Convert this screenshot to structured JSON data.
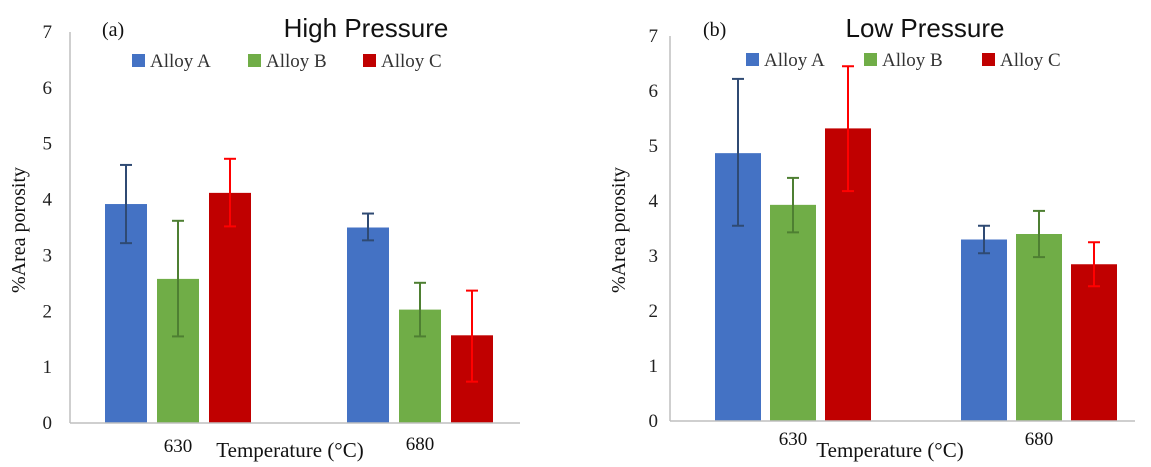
{
  "chart_data": [
    {
      "type": "bar",
      "panel_label": "(a)",
      "title": "High Pressure",
      "xlabel": "Temperature (°C)",
      "ylabel": "%Area porosity",
      "categories": [
        "630",
        "680"
      ],
      "ylim": [
        0,
        7
      ],
      "yticks": [
        "0",
        "1",
        "2",
        "3",
        "4",
        "5",
        "6",
        "7"
      ],
      "grid": false,
      "legend": "top",
      "series": [
        {
          "name": "Alloy A",
          "color": "#4472C4",
          "error_color": "#2F4A73",
          "values": [
            3.92,
            3.5
          ],
          "errors": [
            [
              3.22,
              4.62
            ],
            [
              3.27,
              3.75
            ]
          ]
        },
        {
          "name": "Alloy B",
          "color": "#70AD47",
          "error_color": "#4E7F32",
          "values": [
            2.58,
            2.03
          ],
          "errors": [
            [
              1.55,
              3.62
            ],
            [
              1.55,
              2.51
            ]
          ]
        },
        {
          "name": "Alloy C",
          "color": "#C00000",
          "error_color": "#FF0000",
          "values": [
            4.12,
            1.57
          ],
          "errors": [
            [
              3.52,
              4.73
            ],
            [
              0.74,
              2.37
            ]
          ]
        }
      ]
    },
    {
      "type": "bar",
      "panel_label": "(b)",
      "title": "Low Pressure",
      "xlabel": "Temperature (°C)",
      "ylabel": "%Area porosity",
      "categories": [
        "630",
        "680"
      ],
      "ylim": [
        0,
        7
      ],
      "yticks": [
        "0",
        "1",
        "2",
        "3",
        "4",
        "5",
        "6",
        "7"
      ],
      "grid": false,
      "legend": "top",
      "series": [
        {
          "name": "Alloy A",
          "color": "#4472C4",
          "error_color": "#2F4A73",
          "values": [
            4.87,
            3.3
          ],
          "errors": [
            [
              3.55,
              6.22
            ],
            [
              3.05,
              3.55
            ]
          ]
        },
        {
          "name": "Alloy B",
          "color": "#70AD47",
          "error_color": "#4E7F32",
          "values": [
            3.93,
            3.4
          ],
          "errors": [
            [
              3.43,
              4.42
            ],
            [
              2.98,
              3.82
            ]
          ]
        },
        {
          "name": "Alloy C",
          "color": "#C00000",
          "error_color": "#FF0000",
          "values": [
            5.32,
            2.85
          ],
          "errors": [
            [
              4.18,
              6.45
            ],
            [
              2.45,
              3.25
            ]
          ]
        }
      ]
    }
  ]
}
